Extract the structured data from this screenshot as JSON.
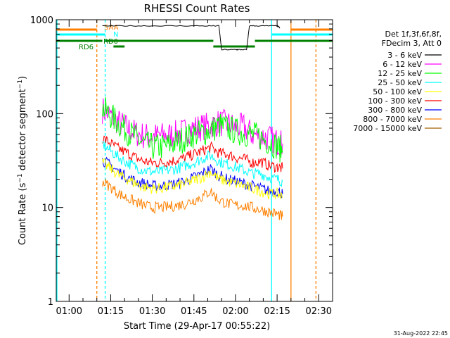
{
  "chart_data": {
    "type": "line",
    "title": "RHESSI Count Rates",
    "xlabel": "Start Time (29-Apr-17 00:55:22)",
    "ylabel": "Count Rate (s",
    "ylabel_sup": "−1",
    "ylabel_rest": " detector segment",
    "ylabel_sup2": "−1",
    "ylabel_end": ")",
    "y_scale": "log",
    "ylim": [
      1,
      1000
    ],
    "xlim": [
      "00:55:22",
      "02:35:00"
    ],
    "x_ticks": [
      "01:00",
      "01:15",
      "01:30",
      "01:45",
      "02:00",
      "02:15",
      "02:30"
    ],
    "y_ticks": [
      "1",
      "10",
      "100",
      "1000"
    ],
    "timestamp": "31-Aug-2022 22:45",
    "legend": {
      "placement": "right",
      "header": [
        "Det 1f,3f,6f,8f,",
        "FDecim 3, Att 0"
      ],
      "entries": [
        {
          "label": "3 - 6 keV",
          "color": "#000000"
        },
        {
          "label": "6 - 12 keV",
          "color": "#ff00ff"
        },
        {
          "label": "12 - 25 keV",
          "color": "#00ff00"
        },
        {
          "label": "25 - 50 keV",
          "color": "#00ffff"
        },
        {
          "label": "50 - 100 keV",
          "color": "#ffff00"
        },
        {
          "label": "100 - 300 keV",
          "color": "#ff0000"
        },
        {
          "label": "300 - 800 keV",
          "color": "#0000ff"
        },
        {
          "label": "800 - 7000 keV",
          "color": "#ff8000"
        },
        {
          "label": "7000 - 15000 keV",
          "color": "#a06000"
        }
      ]
    },
    "annotations": {
      "saa_label": "SAA",
      "night_label": "N",
      "rd6_label": "RD6",
      "rd0_label": "RD0"
    },
    "series": [
      {
        "name": "6 - 12 keV",
        "color": "#ff00ff",
        "x": [
          "01:12",
          "01:15",
          "01:18",
          "01:21",
          "01:24",
          "01:27",
          "01:30",
          "01:33",
          "01:36",
          "01:39",
          "01:42",
          "01:45",
          "01:48",
          "01:51",
          "01:54",
          "01:57",
          "02:00",
          "02:03",
          "02:06",
          "02:09",
          "02:12",
          "02:15",
          "02:17"
        ],
        "y": [
          110,
          95,
          80,
          70,
          62,
          58,
          57,
          58,
          59,
          61,
          65,
          70,
          72,
          75,
          80,
          78,
          72,
          72,
          60,
          58,
          55,
          50,
          48
        ]
      },
      {
        "name": "12 - 25 keV",
        "color": "#00ff00",
        "x": [
          "01:12",
          "01:15",
          "01:18",
          "01:21",
          "01:24",
          "01:27",
          "01:30",
          "01:33",
          "01:36",
          "01:39",
          "01:42",
          "01:45",
          "01:48",
          "01:51",
          "01:54",
          "01:57",
          "02:00",
          "02:03",
          "02:06",
          "02:09",
          "02:12",
          "02:15",
          "02:17"
        ],
        "y": [
          115,
          95,
          78,
          65,
          55,
          48,
          44,
          44,
          46,
          50,
          55,
          60,
          63,
          66,
          75,
          70,
          65,
          62,
          60,
          56,
          50,
          45,
          40
        ]
      },
      {
        "name": "100 - 300 keV",
        "color": "#ff0000",
        "x": [
          "01:12",
          "01:15",
          "01:18",
          "01:21",
          "01:24",
          "01:27",
          "01:30",
          "01:33",
          "01:36",
          "01:39",
          "01:42",
          "01:45",
          "01:48",
          "01:51",
          "01:54",
          "01:57",
          "02:00",
          "02:03",
          "02:06",
          "02:09",
          "02:12",
          "02:15",
          "02:17"
        ],
        "y": [
          55,
          48,
          42,
          38,
          34,
          31,
          30,
          30,
          31,
          32,
          34,
          37,
          40,
          44,
          38,
          37,
          34,
          33,
          30,
          31,
          28,
          27,
          26
        ]
      },
      {
        "name": "25 - 50 keV",
        "color": "#00ffff",
        "x": [
          "01:12",
          "01:15",
          "01:18",
          "01:21",
          "01:24",
          "01:27",
          "01:30",
          "01:33",
          "01:36",
          "01:39",
          "01:42",
          "01:45",
          "01:48",
          "01:51",
          "01:54",
          "01:57",
          "02:00",
          "02:03",
          "02:06",
          "02:09",
          "02:12",
          "02:15",
          "02:17"
        ],
        "y": [
          48,
          40,
          34,
          30,
          27,
          25,
          24,
          24,
          25,
          26,
          28,
          30,
          33,
          36,
          31,
          29,
          27,
          25,
          23,
          23,
          21,
          20,
          19
        ]
      },
      {
        "name": "300 - 800 keV",
        "color": "#0000ff",
        "x": [
          "01:12",
          "01:15",
          "01:18",
          "01:21",
          "01:24",
          "01:27",
          "01:30",
          "01:33",
          "01:36",
          "01:39",
          "01:42",
          "01:45",
          "01:48",
          "01:51",
          "01:54",
          "01:57",
          "02:00",
          "02:03",
          "02:06",
          "02:09",
          "02:12",
          "02:15",
          "02:17"
        ],
        "y": [
          32,
          28,
          24,
          21,
          19,
          18,
          17,
          17,
          17.5,
          18,
          19,
          21,
          23,
          26,
          22,
          20,
          19,
          18,
          17,
          16,
          15,
          15,
          14
        ]
      },
      {
        "name": "50 - 100 keV",
        "color": "#ffff00",
        "x": [
          "01:12",
          "01:15",
          "01:18",
          "01:21",
          "01:24",
          "01:27",
          "01:30",
          "01:33",
          "01:36",
          "01:39",
          "01:42",
          "01:45",
          "01:48",
          "01:51",
          "01:54",
          "01:57",
          "02:00",
          "02:03",
          "02:06",
          "02:09",
          "02:12",
          "02:15",
          "02:17"
        ],
        "y": [
          30,
          26,
          22,
          20,
          18,
          16.5,
          16,
          16,
          16.5,
          17,
          18,
          19.5,
          21,
          24,
          20,
          19,
          18,
          17,
          16,
          15,
          14,
          14,
          13
        ]
      },
      {
        "name": "800 - 7000 keV",
        "color": "#ff8000",
        "x": [
          "01:12",
          "01:15",
          "01:18",
          "01:21",
          "01:24",
          "01:27",
          "01:30",
          "01:33",
          "01:36",
          "01:39",
          "01:42",
          "01:45",
          "01:48",
          "01:51",
          "01:54",
          "01:57",
          "02:00",
          "02:03",
          "02:06",
          "02:09",
          "02:12",
          "02:15",
          "02:17"
        ],
        "y": [
          19,
          16.5,
          14,
          12.5,
          11.5,
          10.5,
          10,
          10,
          10.2,
          10.5,
          11,
          12,
          13,
          15,
          12,
          11,
          10.5,
          10.5,
          10,
          9.5,
          9,
          8.5,
          8
        ]
      },
      {
        "name": "3 - 6 keV",
        "color": "#000000",
        "x": [
          "01:12",
          "01:20",
          "01:30",
          "01:40",
          "01:50",
          "01:54",
          "01:55",
          "02:00",
          "02:01",
          "02:04",
          "02:05",
          "02:10",
          "02:15",
          "02:16"
        ],
        "y": [
          860,
          860,
          860,
          860,
          860,
          860,
          480,
          480,
          480,
          480,
          860,
          860,
          860,
          820
        ]
      }
    ]
  }
}
